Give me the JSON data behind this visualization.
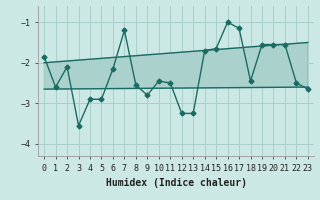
{
  "xlabel": "Humidex (Indice chaleur)",
  "bg_color": "#cce8e5",
  "grid_color": "#aacfcc",
  "line_color": "#1a6b63",
  "xlim": [
    -0.5,
    23.5
  ],
  "ylim": [
    -4.3,
    -0.6
  ],
  "yticks": [
    -4,
    -3,
    -2,
    -1
  ],
  "xticks": [
    0,
    1,
    2,
    3,
    4,
    5,
    6,
    7,
    8,
    9,
    10,
    11,
    12,
    13,
    14,
    15,
    16,
    17,
    18,
    19,
    20,
    21,
    22,
    23
  ],
  "main_x": [
    0,
    1,
    2,
    3,
    4,
    5,
    6,
    7,
    8,
    9,
    10,
    11,
    12,
    13,
    14,
    15,
    16,
    17,
    18,
    19,
    20,
    21,
    22,
    23
  ],
  "main_y": [
    -1.85,
    -2.6,
    -2.1,
    -3.55,
    -2.9,
    -2.9,
    -2.15,
    -1.2,
    -2.55,
    -2.8,
    -2.45,
    -2.5,
    -3.25,
    -3.25,
    -1.7,
    -1.65,
    -1.0,
    -1.15,
    -2.45,
    -1.55,
    -1.55,
    -1.55,
    -2.5,
    -2.65
  ],
  "upper_line_x": [
    0,
    23
  ],
  "upper_line_y": [
    -2.0,
    -1.5
  ],
  "lower_line_x": [
    0,
    23
  ],
  "lower_line_y": [
    -2.65,
    -2.6
  ],
  "marker_size": 2.5,
  "linewidth": 1.0,
  "xlabel_fontsize": 7,
  "tick_fontsize": 6
}
